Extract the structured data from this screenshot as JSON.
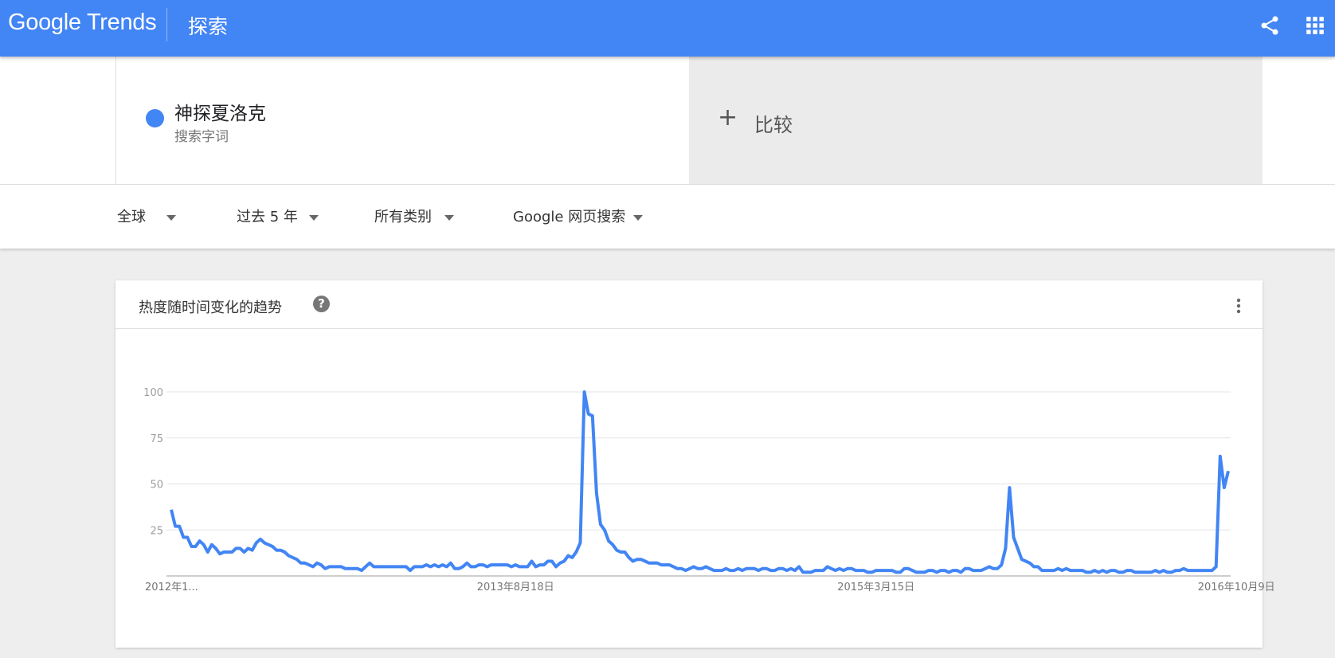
{
  "header": {
    "logo": "Google Trends",
    "page_title": "探索"
  },
  "search": {
    "term_name": "神探夏洛克",
    "term_type": "搜索字词",
    "term_color": "#4285f4",
    "compare_label": "比较"
  },
  "filters": {
    "region": "全球",
    "time": "过去 5 年",
    "category": "所有类别",
    "search_type": "Google 网页搜索"
  },
  "card": {
    "title": "热度随时间变化的趋势"
  },
  "colors": {
    "header_bg": "#4285f4",
    "line": "#4285f4"
  },
  "chart_data": {
    "type": "line",
    "title": "热度随时间变化的趋势",
    "ylim": [
      0,
      100
    ],
    "y_ticks": [
      "100",
      "75",
      "50",
      "25"
    ],
    "x_tick_labels": [
      "2012年1...",
      "2013年8月18日",
      "2015年3月15日",
      "2016年10月9日"
    ],
    "x_tick_positions": [
      0,
      85,
      174,
      263
    ],
    "grid": true,
    "series": [
      {
        "color": "#4285f4",
        "values": [
          36,
          27,
          27,
          21,
          21,
          16,
          16,
          19,
          17,
          13,
          17,
          15,
          12,
          13,
          13,
          13,
          15,
          15,
          13,
          15,
          14,
          18,
          20,
          18,
          17,
          16,
          14,
          14,
          13,
          11,
          10,
          9,
          7,
          7,
          6,
          5,
          7,
          6,
          4,
          5,
          5,
          5,
          5,
          4,
          4,
          4,
          4,
          3,
          5,
          7,
          5,
          5,
          5,
          5,
          5,
          5,
          5,
          5,
          5,
          3,
          5,
          5,
          5,
          6,
          5,
          6,
          5,
          6,
          5,
          7,
          4,
          4,
          5,
          7,
          5,
          5,
          6,
          6,
          5,
          6,
          6,
          6,
          6,
          6,
          5,
          6,
          5,
          5,
          5,
          8,
          5,
          6,
          6,
          8,
          8,
          5,
          7,
          8,
          11,
          10,
          13,
          18,
          100,
          88,
          87,
          45,
          28,
          25,
          19,
          17,
          14,
          13,
          13,
          10,
          8,
          9,
          9,
          8,
          7,
          7,
          7,
          6,
          6,
          6,
          5,
          4,
          4,
          3,
          4,
          5,
          4,
          4,
          5,
          4,
          3,
          3,
          3,
          4,
          3,
          3,
          4,
          3,
          4,
          4,
          4,
          3,
          4,
          4,
          3,
          3,
          4,
          4,
          3,
          4,
          3,
          5,
          2,
          2,
          2,
          3,
          3,
          3,
          5,
          4,
          3,
          4,
          3,
          4,
          4,
          3,
          3,
          3,
          2,
          2,
          3,
          3,
          3,
          3,
          3,
          2,
          2,
          4,
          4,
          3,
          2,
          2,
          2,
          3,
          3,
          2,
          3,
          3,
          2,
          3,
          3,
          2,
          4,
          4,
          3,
          3,
          3,
          4,
          5,
          4,
          4,
          6,
          15,
          48,
          21,
          15,
          9,
          8,
          7,
          5,
          5,
          3,
          3,
          3,
          3,
          4,
          3,
          4,
          3,
          3,
          3,
          3,
          2,
          2,
          3,
          2,
          3,
          2,
          3,
          3,
          2,
          2,
          3,
          3,
          2,
          2,
          2,
          2,
          2,
          3,
          2,
          3,
          2,
          2,
          3,
          3,
          4,
          3,
          3,
          3,
          3,
          3,
          3,
          3,
          5,
          65,
          48,
          57
        ]
      }
    ]
  }
}
